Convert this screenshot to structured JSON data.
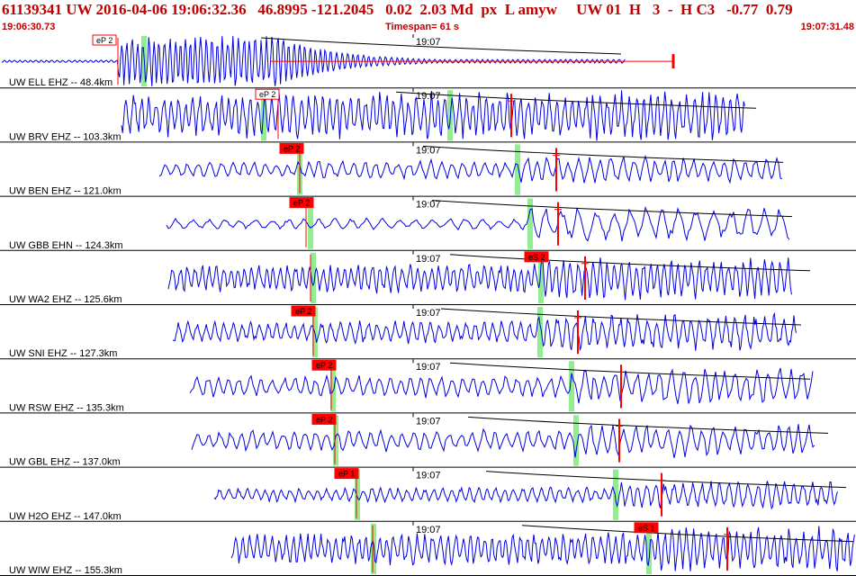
{
  "header": {
    "title": "61139341 UW 2016-04-06 19:06:32.36   46.8995 -121.2045   0.02  2.03 Md  px  L amyw     UW 01  H   3  -  H C3   -0.77  0.79",
    "start_time": "19:06:30.73",
    "timespan": "Timespan=  61 s",
    "end_time": "19:07:31.48"
  },
  "colors": {
    "header_text": "#c00000",
    "trace": "#0000e0",
    "pick": "#ff0000",
    "pick_window": "#90ee90",
    "divider": "#000000"
  },
  "traces": [
    {
      "label": "UW ELL EHZ -- 48.4km",
      "minute": "19:07",
      "pick": "eP 2",
      "pick_style": "open"
    },
    {
      "label": "UW BRV EHZ -- 103.3km",
      "minute": "19:07",
      "pick": "eP 2",
      "pick_style": "open"
    },
    {
      "label": "UW BEN EHZ -- 121.0km",
      "minute": "19:07",
      "pick": "eP 2",
      "pick_style": "filled"
    },
    {
      "label": "UW GBB EHN -- 124.3km",
      "minute": "19:07",
      "pick": "eP 2",
      "pick_style": "filled"
    },
    {
      "label": "UW WA2 EHZ -- 125.6km",
      "minute": "19:07",
      "pick": "eS 2",
      "pick_style": "filled"
    },
    {
      "label": "UW SNI EHZ -- 127.3km",
      "minute": "19:07",
      "pick": "eP 2",
      "pick_style": "filled"
    },
    {
      "label": "UW RSW EHZ -- 135.3km",
      "minute": "19:07",
      "pick": "eP 2",
      "pick_style": "filled"
    },
    {
      "label": "UW GBL EHZ -- 137.0km",
      "minute": "19:07",
      "pick": "eP 2",
      "pick_style": "filled"
    },
    {
      "label": "UW H2O EHZ -- 147.0km",
      "minute": "19:07",
      "pick": "eP 1",
      "pick_style": "filled"
    },
    {
      "label": "UW WIW EHZ -- 155.3km",
      "minute": "19:07",
      "pick": "eS 1",
      "pick_style": "filled"
    }
  ]
}
